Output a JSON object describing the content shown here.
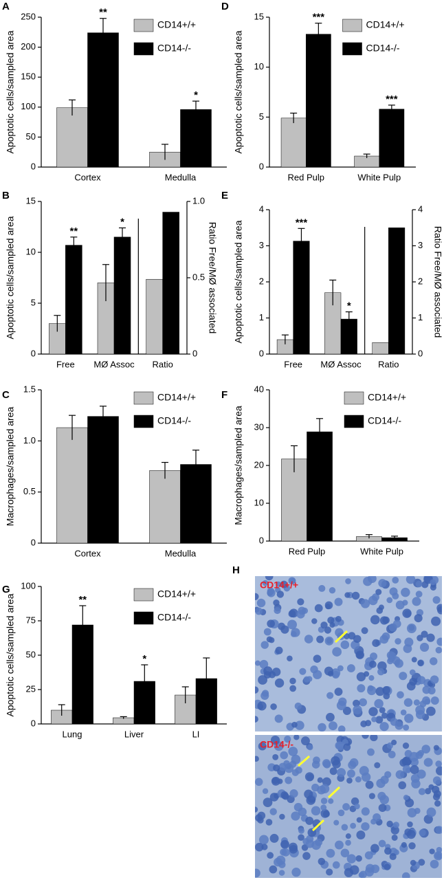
{
  "chart_data": [
    {
      "type": "bar",
      "panel": "A",
      "y_label": "Apoptotic cells/sampled area",
      "categories": [
        "Cortex",
        "Medulla"
      ],
      "series": [
        {
          "name": "CD14+/+",
          "color": "#bfbfbf",
          "values": [
            99,
            25
          ],
          "errors": [
            13,
            13
          ]
        },
        {
          "name": "CD14-/-",
          "color": "#000000",
          "values": [
            224,
            96
          ],
          "errors": [
            24,
            14
          ],
          "stars": [
            "**",
            "*"
          ]
        }
      ],
      "ylim": [
        0,
        250
      ],
      "yticks": [
        0,
        50,
        100,
        150,
        200,
        250
      ],
      "legend": "upper right"
    },
    {
      "type": "bar",
      "panel": "D",
      "y_label": "Apoptotic cells/sampled area",
      "categories": [
        "Red Pulp",
        "White Pulp"
      ],
      "series": [
        {
          "name": "CD14+/+",
          "color": "#bfbfbf",
          "values": [
            4.9,
            1.1
          ],
          "errors": [
            0.5,
            0.2
          ]
        },
        {
          "name": "CD14-/-",
          "color": "#000000",
          "values": [
            13.3,
            5.8
          ],
          "errors": [
            1.1,
            0.4
          ],
          "stars": [
            "***",
            "***"
          ]
        }
      ],
      "ylim": [
        0,
        15
      ],
      "yticks": [
        0,
        5,
        10,
        15
      ],
      "legend": "upper right"
    },
    {
      "type": "bar",
      "panel": "B",
      "y_label": "Apoptotic cells/sampled area",
      "y2_label": "Ratio Free/MØ associated",
      "categories": [
        "Free",
        "MØ Assoc",
        "Ratio"
      ],
      "series": [
        {
          "color": "#bfbfbf",
          "values": [
            3,
            7,
            null
          ],
          "errors": [
            0.8,
            1.8,
            null
          ]
        },
        {
          "color": "#000000",
          "values": [
            10.7,
            11.5,
            null
          ],
          "errors": [
            0.8,
            0.9,
            null
          ],
          "stars": [
            "**",
            "*",
            null
          ]
        },
        {
          "color": "#bfbfbf",
          "values": [
            null,
            null,
            0.49
          ],
          "axis": "y2"
        },
        {
          "color": "#000000",
          "values": [
            null,
            null,
            0.93
          ],
          "axis": "y2"
        }
      ],
      "ylim": [
        0,
        15
      ],
      "yticks": [
        0,
        5,
        10,
        15
      ],
      "y2lim": [
        0,
        1
      ],
      "y2ticks": [
        0,
        0.5,
        {
          "value": 1,
          "label": "1.0"
        }
      ]
    },
    {
      "type": "bar",
      "panel": "E",
      "y_label": "Apoptotic cells/sampled area",
      "y2_label": "Ratio Free/MØ associated",
      "categories": [
        "Free",
        "MØ Assoc",
        "Ratio"
      ],
      "series": [
        {
          "color": "#bfbfbf",
          "values": [
            0.4,
            1.7,
            null
          ],
          "errors": [
            0.13,
            0.35,
            null
          ]
        },
        {
          "color": "#000000",
          "values": [
            3.13,
            0.97,
            null
          ],
          "errors": [
            0.35,
            0.2,
            null
          ],
          "stars": [
            "***",
            "*",
            null
          ]
        },
        {
          "color": "#bfbfbf",
          "values": [
            null,
            null,
            0.32
          ],
          "axis": "y2"
        },
        {
          "color": "#000000",
          "values": [
            null,
            null,
            3.5
          ],
          "axis": "y2"
        }
      ],
      "ylim": [
        0,
        4
      ],
      "yticks": [
        0,
        1,
        2,
        3,
        4
      ],
      "y2lim": [
        0,
        4
      ],
      "y2ticks": [
        0,
        1,
        2,
        3,
        4
      ]
    },
    {
      "type": "bar",
      "panel": "C",
      "y_label": "Macrophages/sampled area",
      "categories": [
        "Cortex",
        "Medulla"
      ],
      "series": [
        {
          "name": "CD14+/+",
          "color": "#bfbfbf",
          "values": [
            1.13,
            0.71
          ],
          "errors": [
            0.12,
            0.08
          ]
        },
        {
          "name": "CD14-/-",
          "color": "#000000",
          "values": [
            1.24,
            0.77
          ],
          "errors": [
            0.1,
            0.14
          ]
        }
      ],
      "ylim": [
        0,
        1.5
      ],
      "yticks": [
        0,
        0.5,
        {
          "value": 1,
          "label": "1.0"
        },
        1.5
      ],
      "legend": "upper right"
    },
    {
      "type": "bar",
      "panel": "F",
      "y_label": "Macrophages/sampled area",
      "categories": [
        "Red Pulp",
        "White Pulp"
      ],
      "series": [
        {
          "name": "CD14+/+",
          "color": "#bfbfbf",
          "values": [
            21.7,
            1.2
          ],
          "errors": [
            3.5,
            0.5
          ]
        },
        {
          "name": "CD14-/-",
          "color": "#000000",
          "values": [
            28.9,
            0.9
          ],
          "errors": [
            3.5,
            0.4
          ]
        }
      ],
      "ylim": [
        0,
        40
      ],
      "yticks": [
        0,
        10,
        20,
        30,
        40
      ],
      "legend": "upper right"
    },
    {
      "type": "bar",
      "panel": "G",
      "y_label": "Apoptotic cells/sampled area",
      "categories": [
        "Lung",
        "Liver",
        "LI"
      ],
      "series": [
        {
          "name": "CD14+/+",
          "color": "#bfbfbf",
          "values": [
            10,
            4.5,
            21
          ],
          "errors": [
            4,
            0.8,
            6
          ]
        },
        {
          "name": "CD14-/-",
          "color": "#000000",
          "values": [
            72,
            31,
            33
          ],
          "errors": [
            14,
            12,
            15
          ],
          "stars": [
            "**",
            "*",
            null
          ]
        }
      ],
      "ylim": [
        0,
        100
      ],
      "yticks": [
        0,
        25,
        50,
        75,
        100
      ],
      "legend": "upper right"
    }
  ],
  "image_panel": {
    "panel": "H",
    "labels": [
      "CD14+/+",
      "CD14-/-"
    ]
  }
}
